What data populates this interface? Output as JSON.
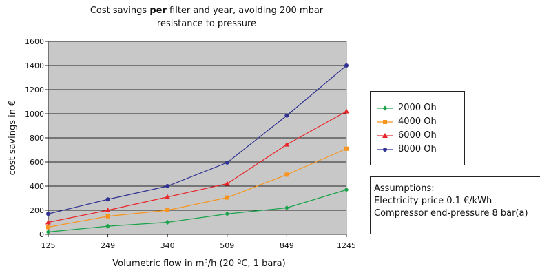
{
  "chart_data": {
    "type": "line",
    "title_part1": "Cost savings ",
    "title_bold": "per",
    "title_part2": " filter and year, avoiding 200 mbar",
    "title_line2": "resistance to pressure",
    "xlabel": "Volumetric flow in m³/h (20 ºC, 1 bara)",
    "ylabel": "cost savings in €",
    "categories": [
      "125",
      "249",
      "340",
      "509",
      "849",
      "1245"
    ],
    "ylim": [
      0,
      1600
    ],
    "yticks": [
      0,
      200,
      400,
      600,
      800,
      1000,
      1200,
      1400,
      1600
    ],
    "grid": true,
    "plot_background": "#c8c8c8",
    "legend_placement": "right",
    "series": [
      {
        "name": "2000 Oh",
        "color": "#1aa34a",
        "marker": "diamond",
        "values": [
          20,
          68,
          100,
          170,
          220,
          370
        ]
      },
      {
        "name": "4000 Oh",
        "color": "#f7941d",
        "marker": "square",
        "values": [
          60,
          150,
          200,
          305,
          495,
          710
        ]
      },
      {
        "name": "6000 Oh",
        "color": "#e8262a",
        "marker": "triangle",
        "values": [
          100,
          200,
          310,
          420,
          745,
          1020
        ]
      },
      {
        "name": "8000 Oh",
        "color": "#2e3192",
        "marker": "circle",
        "values": [
          170,
          290,
          400,
          595,
          985,
          1400
        ]
      }
    ]
  },
  "assumptions": {
    "heading": "Assumptions:",
    "line1": "Electricity price 0.1 €/kWh",
    "line2": "Compressor end-pressure 8 bar(a)"
  }
}
